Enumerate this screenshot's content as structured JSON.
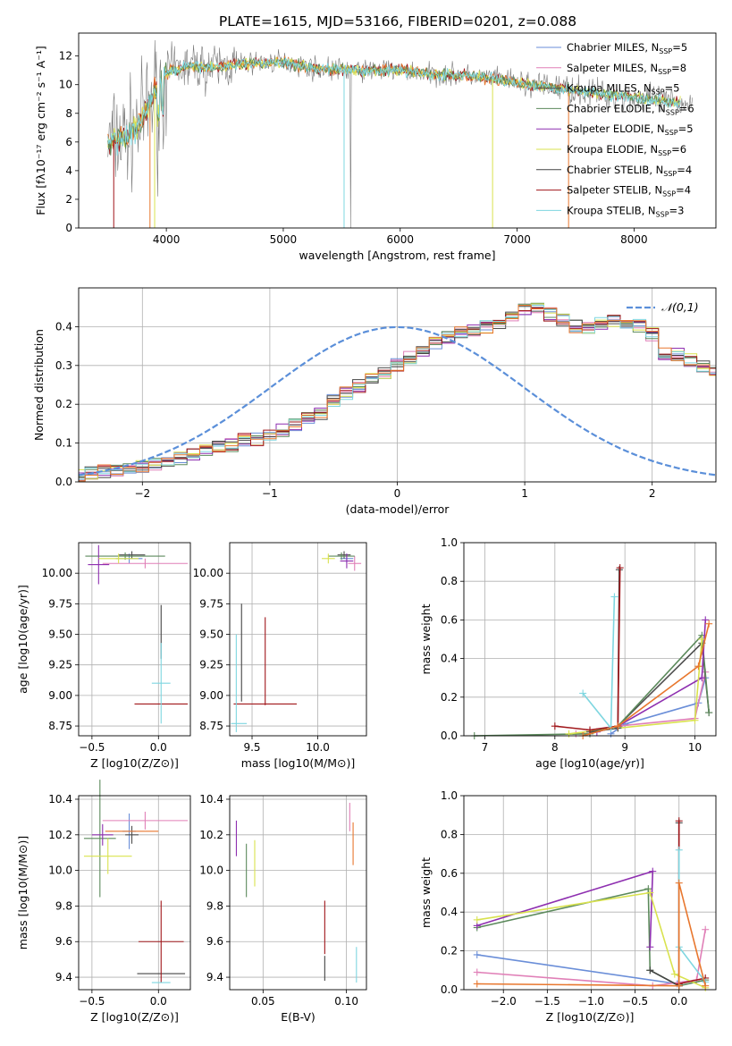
{
  "figure_title": "PLATE=1615, MJD=53166, FIBERID=0201, z=0.088",
  "colors": {
    "Chabrier MILES": "#6a8ed8",
    "Salpeter MILES": "#e07fb7",
    "Kroupa MILES": "#4f4f4f",
    "Chabrier ELODIE": "#5c8a5c",
    "Salpeter ELODIE": "#8e2fb0",
    "Kroupa ELODIE": "#d9e24e",
    "Chabrier STELIB": "#444444",
    "Salpeter STELIB": "#a0161a",
    "Kroupa STELIB": "#7ed6e0",
    "orange": "#e8772e",
    "data_gray": "#7a7a7a",
    "normal": "#5b8fd9"
  },
  "chart_data": [
    {
      "id": "spectrum",
      "type": "line",
      "title": "PLATE=1615, MJD=53166, FIBERID=0201, z=0.088",
      "xlabel": "wavelength [Angstrom, rest frame]",
      "ylabel": "Flux [f_λ 10^-17 erg cm^-2 s^-1 A^-1]",
      "xlim": [
        3250,
        8700
      ],
      "ylim": [
        0,
        13.6
      ],
      "xticks": [
        4000,
        5000,
        6000,
        7000,
        8000
      ],
      "yticks": [
        0,
        2,
        4,
        6,
        8,
        10,
        12
      ],
      "legend_position": "top-right",
      "legend": [
        {
          "name": "Chabrier MILES",
          "nssp": "5"
        },
        {
          "name": "Salpeter MILES",
          "nssp": "8"
        },
        {
          "name": "Kroupa MILES",
          "nssp": "5"
        },
        {
          "name": "Chabrier ELODIE",
          "nssp": "6"
        },
        {
          "name": "Salpeter ELODIE",
          "nssp": "5"
        },
        {
          "name": "Kroupa ELODIE",
          "nssp": "6"
        },
        {
          "name": "Chabrier STELIB",
          "nssp": "4"
        },
        {
          "name": "Salpeter STELIB",
          "nssp": "4"
        },
        {
          "name": "Kroupa STELIB",
          "nssp": "3"
        }
      ],
      "continuum": {
        "x": [
          3500,
          3650,
          3750,
          3850,
          3950,
          4050,
          4200,
          4400,
          4700,
          5000,
          5300,
          5700,
          6000,
          6300,
          6600,
          6900,
          7100,
          7300,
          7500,
          7800,
          8100,
          8400
        ],
        "y": [
          6.0,
          6.4,
          7.0,
          8.4,
          10.4,
          11.0,
          11.3,
          11.2,
          11.5,
          11.6,
          11.1,
          11.0,
          11.0,
          10.7,
          10.6,
          10.3,
          10.0,
          9.8,
          9.6,
          9.3,
          9.0,
          8.7
        ]
      }
    },
    {
      "id": "residuals",
      "type": "histogram",
      "xlabel": "(data-model)/error",
      "ylabel": "Normed distribution",
      "xlim": [
        -2.5,
        2.5
      ],
      "ylim": [
        0,
        0.5
      ],
      "xticks": [
        -2,
        -1,
        0,
        1,
        2
      ],
      "yticks": [
        0.0,
        0.1,
        0.2,
        0.3,
        0.4
      ],
      "legend_label": "𝒩(0,1)",
      "legend_position": "top-right",
      "bin_width": 0.1,
      "base_values": [
        0.018,
        0.022,
        0.028,
        0.032,
        0.034,
        0.038,
        0.046,
        0.055,
        0.06,
        0.068,
        0.079,
        0.088,
        0.095,
        0.108,
        0.11,
        0.118,
        0.132,
        0.145,
        0.163,
        0.175,
        0.212,
        0.23,
        0.248,
        0.268,
        0.282,
        0.3,
        0.322,
        0.34,
        0.36,
        0.372,
        0.382,
        0.393,
        0.4,
        0.407,
        0.422,
        0.442,
        0.445,
        0.432,
        0.416,
        0.4,
        0.4,
        0.41,
        0.412,
        0.41,
        0.402,
        0.38,
        0.332,
        0.328,
        0.314,
        0.298,
        0.285,
        0.272,
        0.25,
        0.232,
        0.22,
        0.202,
        0.18,
        0.172,
        0.15,
        0.137,
        0.135,
        0.124,
        0.11,
        0.098,
        0.088,
        0.078,
        0.07,
        0.06,
        0.056,
        0.046,
        0.042,
        0.038,
        0.032,
        0.028,
        0.022,
        0.02,
        0.02,
        0.017,
        0.015,
        0.014
      ]
    },
    {
      "id": "age_vs_Z",
      "type": "errorbar",
      "xlabel": "Z [log10(Z/Z⊙)]",
      "ylabel": "age  [log10(age/yr)]",
      "xlim": [
        -0.6,
        0.24
      ],
      "ylim": [
        8.67,
        10.25
      ],
      "xticks": [
        -0.5,
        0.0
      ],
      "xtick_labels": [
        "−0.5",
        "0.0"
      ],
      "yticks": [
        8.75,
        9.0,
        9.25,
        9.5,
        9.75,
        10.0
      ],
      "yticks_labels": [
        "8.75",
        "9.00",
        "9.25",
        "9.50",
        "9.75",
        "10.00"
      ],
      "points": [
        {
          "series": "Chabrier MILES",
          "x": -0.22,
          "y": 10.12,
          "xerr": 0.1,
          "yerr": 0.04
        },
        {
          "series": "Salpeter MILES",
          "x": -0.1,
          "y": 10.08,
          "xerr": 0.32,
          "yerr": 0.04
        },
        {
          "series": "Kroupa MILES",
          "x": -0.2,
          "y": 10.15,
          "xerr": 0.1,
          "yerr": 0.03
        },
        {
          "series": "Chabrier ELODIE",
          "x": -0.25,
          "y": 10.14,
          "xerr": 0.3,
          "yerr": 0.03
        },
        {
          "series": "Salpeter ELODIE",
          "x": -0.45,
          "y": 10.07,
          "xerr": 0.08,
          "yerr": 0.16
        },
        {
          "series": "Kroupa ELODIE",
          "x": -0.3,
          "y": 10.12,
          "xerr": 0.15,
          "yerr": 0.04
        },
        {
          "series": "Chabrier STELIB",
          "x": 0.02,
          "y": 9.52,
          "xerr": 0.0,
          "yerr": 0.22
        },
        {
          "series": "Salpeter STELIB",
          "x": 0.02,
          "y": 8.93,
          "xerr": 0.2,
          "yerr": 0.0
        },
        {
          "series": "Kroupa STELIB",
          "x": 0.02,
          "y": 9.1,
          "xerr": 0.07,
          "yerr": 0.33
        }
      ]
    },
    {
      "id": "age_vs_mass",
      "type": "errorbar",
      "xlabel": "mass [log10(M/M⊙)]",
      "ylabel": "",
      "xlim": [
        9.33,
        10.37
      ],
      "ylim": [
        8.67,
        10.25
      ],
      "xticks": [
        9.5,
        10.0
      ],
      "xtick_labels": [
        "9.5",
        "10.0"
      ],
      "yticks": [
        8.75,
        9.0,
        9.25,
        9.5,
        9.75,
        10.0
      ],
      "yticks_labels": [
        "8.75",
        "9.00",
        "9.25",
        "9.50",
        "9.75",
        "10.00"
      ],
      "points": [
        {
          "series": "Chabrier MILES",
          "x": 10.22,
          "y": 10.12,
          "xerr": 0.05,
          "yerr": 0.04
        },
        {
          "series": "Salpeter MILES",
          "x": 10.28,
          "y": 10.08,
          "xerr": 0.05,
          "yerr": 0.06
        },
        {
          "series": "Kroupa MILES",
          "x": 10.2,
          "y": 10.15,
          "xerr": 0.05,
          "yerr": 0.03
        },
        {
          "series": "Chabrier ELODIE",
          "x": 10.18,
          "y": 10.14,
          "xerr": 0.1,
          "yerr": 0.03
        },
        {
          "series": "Salpeter ELODIE",
          "x": 10.22,
          "y": 10.1,
          "xerr": 0.05,
          "yerr": 0.06
        },
        {
          "series": "Kroupa ELODIE",
          "x": 10.08,
          "y": 10.12,
          "xerr": 0.05,
          "yerr": 0.04
        },
        {
          "series": "Chabrier STELIB",
          "x": 9.42,
          "y": 9.35,
          "xerr": 0.0,
          "yerr": 0.4
        },
        {
          "series": "Salpeter STELIB",
          "x": 9.6,
          "y": 8.93,
          "xerr": 0.24,
          "yerr": 0.0
        },
        {
          "series": "Kroupa STELIB",
          "x": 9.38,
          "y": 9.1,
          "xerr": 0.0,
          "yerr": 0.4
        }
      ],
      "extra_segments": [
        {
          "series": "Salpeter STELIB",
          "x": 9.6,
          "y": 9.28,
          "xerr": 0.0,
          "yerr": 0.36
        },
        {
          "series": "Kroupa STELIB",
          "x": 9.4,
          "y": 8.77,
          "xerr": 0.06,
          "yerr": 0.0
        }
      ]
    },
    {
      "id": "weight_vs_age",
      "type": "line",
      "xlabel": "age  [log10(age/yr)]",
      "ylabel": "mass weight",
      "xlim": [
        6.7,
        10.3
      ],
      "ylim": [
        0,
        1.0
      ],
      "xticks": [
        7,
        8,
        9,
        10
      ],
      "yticks": [
        0.0,
        0.2,
        0.4,
        0.6,
        0.8,
        1.0
      ],
      "series": [
        {
          "name": "Chabrier MILES",
          "x": [
            8.8,
            9.0,
            10.05,
            10.15
          ],
          "y": [
            0.01,
            0.06,
            0.17,
            0.3
          ]
        },
        {
          "name": "Salpeter MILES",
          "x": [
            8.3,
            8.9,
            10.0,
            10.15
          ],
          "y": [
            0.01,
            0.05,
            0.09,
            0.33
          ]
        },
        {
          "name": "Kroupa MILES",
          "x": [
            8.5,
            8.9,
            10.1,
            10.2
          ],
          "y": [
            0.02,
            0.05,
            0.48,
            0.12
          ]
        },
        {
          "name": "Chabrier ELODIE",
          "x": [
            6.85,
            8.5,
            8.9,
            10.1,
            10.2
          ],
          "y": [
            0.0,
            0.01,
            0.05,
            0.52,
            0.12
          ]
        },
        {
          "name": "Salpeter ELODIE",
          "x": [
            8.6,
            8.9,
            10.1,
            10.15
          ],
          "y": [
            0.02,
            0.05,
            0.3,
            0.6
          ]
        },
        {
          "name": "Kroupa ELODIE",
          "x": [
            8.2,
            8.9,
            10.0,
            10.1
          ],
          "y": [
            0.01,
            0.04,
            0.08,
            0.5
          ]
        },
        {
          "name": "Chabrier STELIB",
          "x": [
            8.5,
            8.9,
            8.92
          ],
          "y": [
            0.02,
            0.04,
            0.86
          ]
        },
        {
          "name": "Salpeter STELIB",
          "x": [
            8.0,
            8.5,
            8.9,
            8.93
          ],
          "y": [
            0.05,
            0.03,
            0.05,
            0.87
          ]
        },
        {
          "name": "Kroupa STELIB",
          "x": [
            8.4,
            8.8,
            8.85,
            8.8
          ],
          "y": [
            0.22,
            0.04,
            0.72,
            0.04
          ]
        },
        {
          "name": "orange",
          "x": [
            8.4,
            8.9,
            10.05,
            10.2
          ],
          "y": [
            0.0,
            0.05,
            0.36,
            0.58
          ]
        }
      ]
    },
    {
      "id": "mass_vs_Z",
      "type": "errorbar",
      "xlabel": "Z [log10(Z/Z⊙)]",
      "ylabel": "mass [log10(M/M⊙)]",
      "xlim": [
        -0.6,
        0.24
      ],
      "ylim": [
        9.33,
        10.42
      ],
      "xticks": [
        -0.5,
        0.0
      ],
      "xtick_labels": [
        "−0.5",
        "0.0"
      ],
      "yticks": [
        9.4,
        9.6,
        9.8,
        10.0,
        10.2,
        10.4
      ],
      "yticks_labels": [
        "9.4",
        "9.6",
        "9.8",
        "10.0",
        "10.2",
        "10.4"
      ],
      "points": [
        {
          "series": "Chabrier MILES",
          "x": -0.22,
          "y": 10.22,
          "xerr": 0.05,
          "yerr": 0.1
        },
        {
          "series": "Salpeter MILES",
          "x": -0.1,
          "y": 10.28,
          "xerr": 0.32,
          "yerr": 0.05
        },
        {
          "series": "Kroupa MILES",
          "x": -0.2,
          "y": 10.2,
          "xerr": 0.05,
          "yerr": 0.05
        },
        {
          "series": "Chabrier ELODIE",
          "x": -0.44,
          "y": 10.18,
          "xerr": 0.12,
          "yerr": 0.33
        },
        {
          "series": "Salpeter ELODIE",
          "x": -0.42,
          "y": 10.2,
          "xerr": 0.08,
          "yerr": 0.06
        },
        {
          "series": "Kroupa ELODIE",
          "x": -0.38,
          "y": 10.08,
          "xerr": 0.18,
          "yerr": 0.1
        },
        {
          "series": "Chabrier STELIB",
          "x": 0.02,
          "y": 9.42,
          "xerr": 0.18,
          "yerr": 0.0
        },
        {
          "series": "Salpeter STELIB",
          "x": 0.02,
          "y": 9.6,
          "xerr": 0.17,
          "yerr": 0.23
        },
        {
          "series": "Kroupa STELIB",
          "x": 0.02,
          "y": 9.37,
          "xerr": 0.07,
          "yerr": 0.0
        }
      ],
      "extra_segments": [
        {
          "series": "orange",
          "x": -0.2,
          "y": 10.22,
          "xerr": 0.2,
          "yerr": 0.0
        }
      ]
    },
    {
      "id": "mass_vs_ebv",
      "type": "errorbar",
      "xlabel": "E(B-V)",
      "ylabel": "",
      "xlim": [
        0.03,
        0.112
      ],
      "ylim": [
        9.33,
        10.42
      ],
      "xticks": [
        0.05,
        0.1
      ],
      "xtick_labels": [
        "0.05",
        "0.10"
      ],
      "yticks": [
        9.4,
        9.6,
        9.8,
        10.0,
        10.2,
        10.4
      ],
      "yticks_labels": [
        "9.4",
        "9.6",
        "9.8",
        "10.0",
        "10.2",
        "10.4"
      ],
      "points": [
        {
          "series": "Salpeter ELODIE",
          "x": 0.034,
          "y": 10.18,
          "xerr": 0.0,
          "yerr": 0.1
        },
        {
          "series": "Chabrier ELODIE",
          "x": 0.04,
          "y": 10.0,
          "xerr": 0.0,
          "yerr": 0.15
        },
        {
          "series": "Kroupa ELODIE",
          "x": 0.045,
          "y": 10.04,
          "xerr": 0.0,
          "yerr": 0.13
        },
        {
          "series": "Salpeter STELIB",
          "x": 0.087,
          "y": 9.68,
          "xerr": 0.0,
          "yerr": 0.15
        },
        {
          "series": "Chabrier STELIB",
          "x": 0.087,
          "y": 9.45,
          "xerr": 0.0,
          "yerr": 0.07
        },
        {
          "series": "Salpeter MILES",
          "x": 0.102,
          "y": 10.3,
          "xerr": 0.0,
          "yerr": 0.08
        },
        {
          "series": "orange",
          "x": 0.104,
          "y": 10.15,
          "xerr": 0.0,
          "yerr": 0.12
        },
        {
          "series": "Kroupa STELIB",
          "x": 0.106,
          "y": 9.47,
          "xerr": 0.0,
          "yerr": 0.1
        }
      ]
    },
    {
      "id": "weight_vs_Z",
      "type": "line",
      "xlabel": "Z [log10(Z/Z⊙)]",
      "ylabel": "mass weight",
      "xlim": [
        -2.45,
        0.42
      ],
      "ylim": [
        0,
        1.0
      ],
      "xticks": [
        -2.0,
        -1.5,
        -1.0,
        -0.5,
        0.0
      ],
      "xtick_labels": [
        "−2.0",
        "−1.5",
        "−1.0",
        "−0.5",
        "0.0"
      ],
      "yticks": [
        0.0,
        0.2,
        0.4,
        0.6,
        0.8,
        1.0
      ],
      "series": [
        {
          "name": "Chabrier MILES",
          "x": [
            -2.3,
            -0.02,
            0.0
          ],
          "y": [
            0.18,
            0.03,
            0.02
          ]
        },
        {
          "name": "Salpeter MILES",
          "x": [
            -2.3,
            -0.3,
            0.2,
            0.3
          ],
          "y": [
            0.09,
            0.02,
            0.05,
            0.31
          ]
        },
        {
          "name": "Chabrier ELODIE",
          "x": [
            -2.3,
            -0.35,
            -0.33,
            0.0,
            0.3
          ],
          "y": [
            0.32,
            0.52,
            0.1,
            0.02,
            0.05
          ]
        },
        {
          "name": "Salpeter ELODIE",
          "x": [
            -2.3,
            -0.3,
            -0.33
          ],
          "y": [
            0.33,
            0.61,
            0.22
          ]
        },
        {
          "name": "Kroupa ELODIE",
          "x": [
            -2.3,
            -0.33,
            -0.05,
            0.3
          ],
          "y": [
            0.36,
            0.5,
            0.08,
            0.01
          ]
        },
        {
          "name": "Chabrier STELIB",
          "x": [
            -0.33,
            0.0,
            0.0
          ],
          "y": [
            0.1,
            0.02,
            0.86
          ]
        },
        {
          "name": "Salpeter STELIB",
          "x": [
            0.0,
            0.0,
            0.3
          ],
          "y": [
            0.87,
            0.03,
            0.06
          ]
        },
        {
          "name": "Kroupa STELIB",
          "x": [
            0.0,
            0.0,
            0.3
          ],
          "y": [
            0.72,
            0.22,
            0.04
          ]
        },
        {
          "name": "orange",
          "x": [
            -2.3,
            0.0,
            0.0,
            0.3
          ],
          "y": [
            0.03,
            0.02,
            0.55,
            0.02
          ]
        }
      ]
    }
  ]
}
